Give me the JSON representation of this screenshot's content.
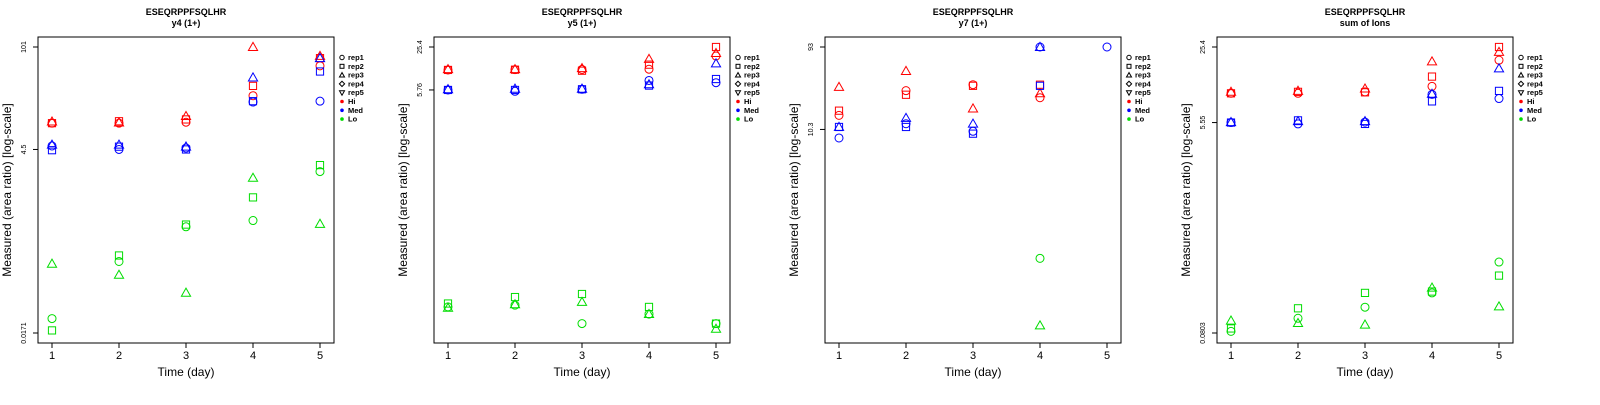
{
  "chart_data": [
    {
      "type": "scatter",
      "title": "ESEQRPPFSQLHR",
      "subtitle": "y4 (1+)",
      "xlabel": "Time (day)",
      "ylabel": "Measured (area ratio) [log-scale]",
      "x_ticks": [
        "1",
        "2",
        "3",
        "4",
        "5"
      ],
      "y_ticks": [
        {
          "value": 101,
          "label": "101"
        },
        {
          "value": 4.5,
          "label": "4.5"
        },
        {
          "value": 0.0171,
          "label": "0.0171"
        }
      ],
      "ylim_log": [
        0.0171,
        101
      ],
      "legend": [
        "rep1",
        "rep2",
        "rep3",
        "rep4",
        "rep5",
        "Hi",
        "Med",
        "Lo"
      ],
      "points": [
        {
          "level": "Hi",
          "rep": 1,
          "x": 1,
          "y": 10
        },
        {
          "level": "Hi",
          "rep": 2,
          "x": 1,
          "y": 10
        },
        {
          "level": "Hi",
          "rep": 3,
          "x": 1,
          "y": 10.5
        },
        {
          "level": "Hi",
          "rep": 1,
          "x": 2,
          "y": 10
        },
        {
          "level": "Hi",
          "rep": 2,
          "x": 2,
          "y": 10.6
        },
        {
          "level": "Hi",
          "rep": 3,
          "x": 2,
          "y": 10.2
        },
        {
          "level": "Hi",
          "rep": 1,
          "x": 3,
          "y": 10.3
        },
        {
          "level": "Hi",
          "rep": 2,
          "x": 3,
          "y": 11.2
        },
        {
          "level": "Hi",
          "rep": 3,
          "x": 3,
          "y": 12.4
        },
        {
          "level": "Hi",
          "rep": 1,
          "x": 4,
          "y": 23
        },
        {
          "level": "Hi",
          "rep": 2,
          "x": 4,
          "y": 31
        },
        {
          "level": "Hi",
          "rep": 3,
          "x": 4,
          "y": 101
        },
        {
          "level": "Hi",
          "rep": 1,
          "x": 5,
          "y": 57
        },
        {
          "level": "Hi",
          "rep": 2,
          "x": 5,
          "y": 72
        },
        {
          "level": "Hi",
          "rep": 3,
          "x": 5,
          "y": 77
        },
        {
          "level": "Med",
          "rep": 1,
          "x": 1,
          "y": 5
        },
        {
          "level": "Med",
          "rep": 2,
          "x": 1,
          "y": 4.4
        },
        {
          "level": "Med",
          "rep": 3,
          "x": 1,
          "y": 5.2
        },
        {
          "level": "Med",
          "rep": 1,
          "x": 2,
          "y": 4.5
        },
        {
          "level": "Med",
          "rep": 2,
          "x": 2,
          "y": 4.9
        },
        {
          "level": "Med",
          "rep": 3,
          "x": 2,
          "y": 5.2
        },
        {
          "level": "Med",
          "rep": 1,
          "x": 3,
          "y": 4.7
        },
        {
          "level": "Med",
          "rep": 2,
          "x": 3,
          "y": 4.5
        },
        {
          "level": "Med",
          "rep": 3,
          "x": 3,
          "y": 4.9
        },
        {
          "level": "Med",
          "rep": 1,
          "x": 4,
          "y": 19
        },
        {
          "level": "Med",
          "rep": 2,
          "x": 4,
          "y": 19.5
        },
        {
          "level": "Med",
          "rep": 3,
          "x": 4,
          "y": 40
        },
        {
          "level": "Med",
          "rep": 1,
          "x": 5,
          "y": 19.5
        },
        {
          "level": "Med",
          "rep": 2,
          "x": 5,
          "y": 48
        },
        {
          "level": "Med",
          "rep": 3,
          "x": 5,
          "y": 72
        },
        {
          "level": "Lo",
          "rep": 1,
          "x": 1,
          "y": 0.0265
        },
        {
          "level": "Lo",
          "rep": 2,
          "x": 1,
          "y": 0.0185
        },
        {
          "level": "Lo",
          "rep": 3,
          "x": 1,
          "y": 0.14
        },
        {
          "level": "Lo",
          "rep": 1,
          "x": 2,
          "y": 0.15
        },
        {
          "level": "Lo",
          "rep": 2,
          "x": 2,
          "y": 0.18
        },
        {
          "level": "Lo",
          "rep": 3,
          "x": 2,
          "y": 0.1
        },
        {
          "level": "Lo",
          "rep": 1,
          "x": 3,
          "y": 0.43
        },
        {
          "level": "Lo",
          "rep": 2,
          "x": 3,
          "y": 0.46
        },
        {
          "level": "Lo",
          "rep": 3,
          "x": 3,
          "y": 0.058
        },
        {
          "level": "Lo",
          "rep": 1,
          "x": 4,
          "y": 0.52
        },
        {
          "level": "Lo",
          "rep": 2,
          "x": 4,
          "y": 1.05
        },
        {
          "level": "Lo",
          "rep": 3,
          "x": 4,
          "y": 1.9
        },
        {
          "level": "Lo",
          "rep": 1,
          "x": 5,
          "y": 2.3
        },
        {
          "level": "Lo",
          "rep": 2,
          "x": 5,
          "y": 2.8
        },
        {
          "level": "Lo",
          "rep": 3,
          "x": 5,
          "y": 0.47
        }
      ]
    },
    {
      "type": "scatter",
      "title": "ESEQRPPFSQLHR",
      "subtitle": "y5 (1+)",
      "xlabel": "Time (day)",
      "ylabel": "Measured (area ratio) [log-scale]",
      "x_ticks": [
        "1",
        "2",
        "3",
        "4",
        "5"
      ],
      "y_ticks": [
        {
          "value": 25.4,
          "label": "25.4"
        },
        {
          "value": 5.76,
          "label": "5.76"
        }
      ],
      "ylim_log": [
        0.0013,
        25.4
      ],
      "legend": [
        "rep1",
        "rep2",
        "rep3",
        "rep4",
        "rep5",
        "Hi",
        "Med",
        "Lo"
      ],
      "points": [
        {
          "level": "Hi",
          "rep": 1,
          "x": 1,
          "y": 11.5
        },
        {
          "level": "Hi",
          "rep": 2,
          "x": 1,
          "y": 11.5
        },
        {
          "level": "Hi",
          "rep": 3,
          "x": 1,
          "y": 11.8
        },
        {
          "level": "Hi",
          "rep": 1,
          "x": 2,
          "y": 11.6
        },
        {
          "level": "Hi",
          "rep": 2,
          "x": 2,
          "y": 11.6
        },
        {
          "level": "Hi",
          "rep": 3,
          "x": 2,
          "y": 11.8
        },
        {
          "level": "Hi",
          "rep": 1,
          "x": 3,
          "y": 11.7
        },
        {
          "level": "Hi",
          "rep": 2,
          "x": 3,
          "y": 11.2
        },
        {
          "level": "Hi",
          "rep": 3,
          "x": 3,
          "y": 12.2
        },
        {
          "level": "Hi",
          "rep": 1,
          "x": 4,
          "y": 11.8
        },
        {
          "level": "Hi",
          "rep": 2,
          "x": 4,
          "y": 13.8
        },
        {
          "level": "Hi",
          "rep": 3,
          "x": 4,
          "y": 16.8
        },
        {
          "level": "Hi",
          "rep": 1,
          "x": 5,
          "y": 18.6
        },
        {
          "level": "Hi",
          "rep": 2,
          "x": 5,
          "y": 25.4
        },
        {
          "level": "Hi",
          "rep": 3,
          "x": 5,
          "y": 20.6
        },
        {
          "level": "Med",
          "rep": 1,
          "x": 1,
          "y": 5.76
        },
        {
          "level": "Med",
          "rep": 2,
          "x": 1,
          "y": 5.76
        },
        {
          "level": "Med",
          "rep": 3,
          "x": 1,
          "y": 5.9
        },
        {
          "level": "Med",
          "rep": 1,
          "x": 2,
          "y": 5.5
        },
        {
          "level": "Med",
          "rep": 2,
          "x": 2,
          "y": 5.76
        },
        {
          "level": "Med",
          "rep": 3,
          "x": 2,
          "y": 6.0
        },
        {
          "level": "Med",
          "rep": 1,
          "x": 3,
          "y": 5.9
        },
        {
          "level": "Med",
          "rep": 2,
          "x": 3,
          "y": 5.9
        },
        {
          "level": "Med",
          "rep": 3,
          "x": 3,
          "y": 6.0
        },
        {
          "level": "Med",
          "rep": 1,
          "x": 4,
          "y": 8.0
        },
        {
          "level": "Med",
          "rep": 2,
          "x": 4,
          "y": 6.7
        },
        {
          "level": "Med",
          "rep": 3,
          "x": 4,
          "y": 7.0
        },
        {
          "level": "Med",
          "rep": 1,
          "x": 5,
          "y": 7.4
        },
        {
          "level": "Med",
          "rep": 2,
          "x": 5,
          "y": 8.4
        },
        {
          "level": "Med",
          "rep": 3,
          "x": 5,
          "y": 14.4
        },
        {
          "level": "Lo",
          "rep": 1,
          "x": 1,
          "y": 0.0032
        },
        {
          "level": "Lo",
          "rep": 2,
          "x": 1,
          "y": 0.0036
        },
        {
          "level": "Lo",
          "rep": 3,
          "x": 1,
          "y": 0.0031
        },
        {
          "level": "Lo",
          "rep": 1,
          "x": 2,
          "y": 0.0034
        },
        {
          "level": "Lo",
          "rep": 2,
          "x": 2,
          "y": 0.0045
        },
        {
          "level": "Lo",
          "rep": 3,
          "x": 2,
          "y": 0.0035
        },
        {
          "level": "Lo",
          "rep": 1,
          "x": 3,
          "y": 0.0018
        },
        {
          "level": "Lo",
          "rep": 2,
          "x": 3,
          "y": 0.005
        },
        {
          "level": "Lo",
          "rep": 3,
          "x": 3,
          "y": 0.0038
        },
        {
          "level": "Lo",
          "rep": 1,
          "x": 4,
          "y": 0.0025
        },
        {
          "level": "Lo",
          "rep": 2,
          "x": 4,
          "y": 0.0032
        },
        {
          "level": "Lo",
          "rep": 3,
          "x": 4,
          "y": 0.0025
        },
        {
          "level": "Lo",
          "rep": 1,
          "x": 5,
          "y": 0.0018
        },
        {
          "level": "Lo",
          "rep": 2,
          "x": 5,
          "y": 0.0018
        },
        {
          "level": "Lo",
          "rep": 3,
          "x": 5,
          "y": 0.0015
        }
      ]
    },
    {
      "type": "scatter",
      "title": "ESEQRPPFSQLHR",
      "subtitle": "y7 (1+)",
      "xlabel": "Time (day)",
      "ylabel": "Measured (area ratio) [log-scale]",
      "x_ticks": [
        "1",
        "2",
        "3",
        "4",
        "5"
      ],
      "y_ticks": [
        {
          "value": 93,
          "label": "93"
        },
        {
          "value": 10.3,
          "label": "10.3"
        }
      ],
      "ylim_log": [
        0.045,
        93
      ],
      "legend": [
        "rep1",
        "rep2",
        "rep3",
        "rep4",
        "rep5",
        "Hi",
        "Med",
        "Lo"
      ],
      "points": [
        {
          "level": "Hi",
          "rep": 1,
          "x": 1,
          "y": 15
        },
        {
          "level": "Hi",
          "rep": 2,
          "x": 1,
          "y": 17
        },
        {
          "level": "Hi",
          "rep": 3,
          "x": 1,
          "y": 32
        },
        {
          "level": "Hi",
          "rep": 1,
          "x": 2,
          "y": 29
        },
        {
          "level": "Hi",
          "rep": 2,
          "x": 2,
          "y": 26
        },
        {
          "level": "Hi",
          "rep": 3,
          "x": 2,
          "y": 49
        },
        {
          "level": "Hi",
          "rep": 1,
          "x": 3,
          "y": 34
        },
        {
          "level": "Hi",
          "rep": 2,
          "x": 3,
          "y": 33
        },
        {
          "level": "Hi",
          "rep": 3,
          "x": 3,
          "y": 18
        },
        {
          "level": "Hi",
          "rep": 1,
          "x": 4,
          "y": 24
        },
        {
          "level": "Hi",
          "rep": 2,
          "x": 4,
          "y": 34
        },
        {
          "level": "Hi",
          "rep": 3,
          "x": 4,
          "y": 27
        },
        {
          "level": "Med",
          "rep": 1,
          "x": 1,
          "y": 8.2
        },
        {
          "level": "Med",
          "rep": 2,
          "x": 1,
          "y": 11
        },
        {
          "level": "Med",
          "rep": 3,
          "x": 1,
          "y": 11
        },
        {
          "level": "Med",
          "rep": 1,
          "x": 2,
          "y": 12
        },
        {
          "level": "Med",
          "rep": 2,
          "x": 2,
          "y": 11
        },
        {
          "level": "Med",
          "rep": 3,
          "x": 2,
          "y": 14
        },
        {
          "level": "Med",
          "rep": 1,
          "x": 3,
          "y": 9.8
        },
        {
          "level": "Med",
          "rep": 2,
          "x": 3,
          "y": 9.2
        },
        {
          "level": "Med",
          "rep": 3,
          "x": 3,
          "y": 12
        },
        {
          "level": "Med",
          "rep": 1,
          "x": 4,
          "y": 93
        },
        {
          "level": "Med",
          "rep": 2,
          "x": 4,
          "y": 33
        },
        {
          "level": "Med",
          "rep": 3,
          "x": 4,
          "y": 93
        },
        {
          "level": "Med",
          "rep": 1,
          "x": 5,
          "y": 93
        },
        {
          "level": "Lo",
          "rep": 1,
          "x": 4,
          "y": 0.33
        },
        {
          "level": "Lo",
          "rep": 3,
          "x": 4,
          "y": 0.055
        }
      ]
    },
    {
      "type": "scatter",
      "title": "ESEQRPPFSQLHR",
      "subtitle": "sum of Ions",
      "xlabel": "Time (day)",
      "ylabel": "Measured (area ratio) [log-scale]",
      "x_ticks": [
        "1",
        "2",
        "3",
        "4",
        "5"
      ],
      "y_ticks": [
        {
          "value": 25.4,
          "label": "25.4"
        },
        {
          "value": 5.55,
          "label": "5.55"
        },
        {
          "value": 0.0803,
          "label": "0.0803"
        }
      ],
      "ylim_log": [
        0.0803,
        25.4
      ],
      "legend": [
        "rep1",
        "rep2",
        "rep3",
        "rep4",
        "rep5",
        "Hi",
        "Med",
        "Lo"
      ],
      "points": [
        {
          "level": "Hi",
          "rep": 1,
          "x": 1,
          "y": 10
        },
        {
          "level": "Hi",
          "rep": 2,
          "x": 1,
          "y": 10
        },
        {
          "level": "Hi",
          "rep": 3,
          "x": 1,
          "y": 10.3
        },
        {
          "level": "Hi",
          "rep": 1,
          "x": 2,
          "y": 10
        },
        {
          "level": "Hi",
          "rep": 2,
          "x": 2,
          "y": 10.3
        },
        {
          "level": "Hi",
          "rep": 3,
          "x": 2,
          "y": 10.5
        },
        {
          "level": "Hi",
          "rep": 1,
          "x": 3,
          "y": 10.3
        },
        {
          "level": "Hi",
          "rep": 2,
          "x": 3,
          "y": 10.2
        },
        {
          "level": "Hi",
          "rep": 3,
          "x": 3,
          "y": 11
        },
        {
          "level": "Hi",
          "rep": 1,
          "x": 4,
          "y": 11.5
        },
        {
          "level": "Hi",
          "rep": 2,
          "x": 4,
          "y": 14
        },
        {
          "level": "Hi",
          "rep": 3,
          "x": 4,
          "y": 19
        },
        {
          "level": "Hi",
          "rep": 1,
          "x": 5,
          "y": 19.5
        },
        {
          "level": "Hi",
          "rep": 2,
          "x": 5,
          "y": 25.4
        },
        {
          "level": "Hi",
          "rep": 3,
          "x": 5,
          "y": 23
        },
        {
          "level": "Med",
          "rep": 1,
          "x": 1,
          "y": 5.55
        },
        {
          "level": "Med",
          "rep": 2,
          "x": 1,
          "y": 5.55
        },
        {
          "level": "Med",
          "rep": 3,
          "x": 1,
          "y": 5.6
        },
        {
          "level": "Med",
          "rep": 1,
          "x": 2,
          "y": 5.4
        },
        {
          "level": "Med",
          "rep": 2,
          "x": 2,
          "y": 5.8
        },
        {
          "level": "Med",
          "rep": 3,
          "x": 2,
          "y": 5.7
        },
        {
          "level": "Med",
          "rep": 1,
          "x": 3,
          "y": 5.6
        },
        {
          "level": "Med",
          "rep": 2,
          "x": 3,
          "y": 5.4
        },
        {
          "level": "Med",
          "rep": 3,
          "x": 3,
          "y": 5.7
        },
        {
          "level": "Med",
          "rep": 1,
          "x": 4,
          "y": 9.8
        },
        {
          "level": "Med",
          "rep": 2,
          "x": 4,
          "y": 8.5
        },
        {
          "level": "Med",
          "rep": 3,
          "x": 4,
          "y": 9.9
        },
        {
          "level": "Med",
          "rep": 1,
          "x": 5,
          "y": 9.0
        },
        {
          "level": "Med",
          "rep": 2,
          "x": 5,
          "y": 10.5
        },
        {
          "level": "Med",
          "rep": 3,
          "x": 5,
          "y": 16.5
        },
        {
          "level": "Lo",
          "rep": 1,
          "x": 1,
          "y": 0.083
        },
        {
          "level": "Lo",
          "rep": 2,
          "x": 1,
          "y": 0.088
        },
        {
          "level": "Lo",
          "rep": 3,
          "x": 1,
          "y": 0.103
        },
        {
          "level": "Lo",
          "rep": 1,
          "x": 2,
          "y": 0.108
        },
        {
          "level": "Lo",
          "rep": 2,
          "x": 2,
          "y": 0.132
        },
        {
          "level": "Lo",
          "rep": 3,
          "x": 2,
          "y": 0.098
        },
        {
          "level": "Lo",
          "rep": 1,
          "x": 3,
          "y": 0.135
        },
        {
          "level": "Lo",
          "rep": 2,
          "x": 3,
          "y": 0.18
        },
        {
          "level": "Lo",
          "rep": 3,
          "x": 3,
          "y": 0.095
        },
        {
          "level": "Lo",
          "rep": 1,
          "x": 4,
          "y": 0.18
        },
        {
          "level": "Lo",
          "rep": 2,
          "x": 4,
          "y": 0.185
        },
        {
          "level": "Lo",
          "rep": 3,
          "x": 4,
          "y": 0.2
        },
        {
          "level": "Lo",
          "rep": 1,
          "x": 5,
          "y": 0.335
        },
        {
          "level": "Lo",
          "rep": 2,
          "x": 5,
          "y": 0.255
        },
        {
          "level": "Lo",
          "rep": 3,
          "x": 5,
          "y": 0.137
        }
      ]
    }
  ],
  "colors": {
    "Hi": "#ff0000",
    "Med": "#0000ff",
    "Lo": "#00dd00"
  },
  "legend_symbols": {
    "rep1": "circle",
    "rep2": "square",
    "rep3": "triangle-up",
    "rep4": "diamond",
    "rep5": "triangle-down"
  }
}
